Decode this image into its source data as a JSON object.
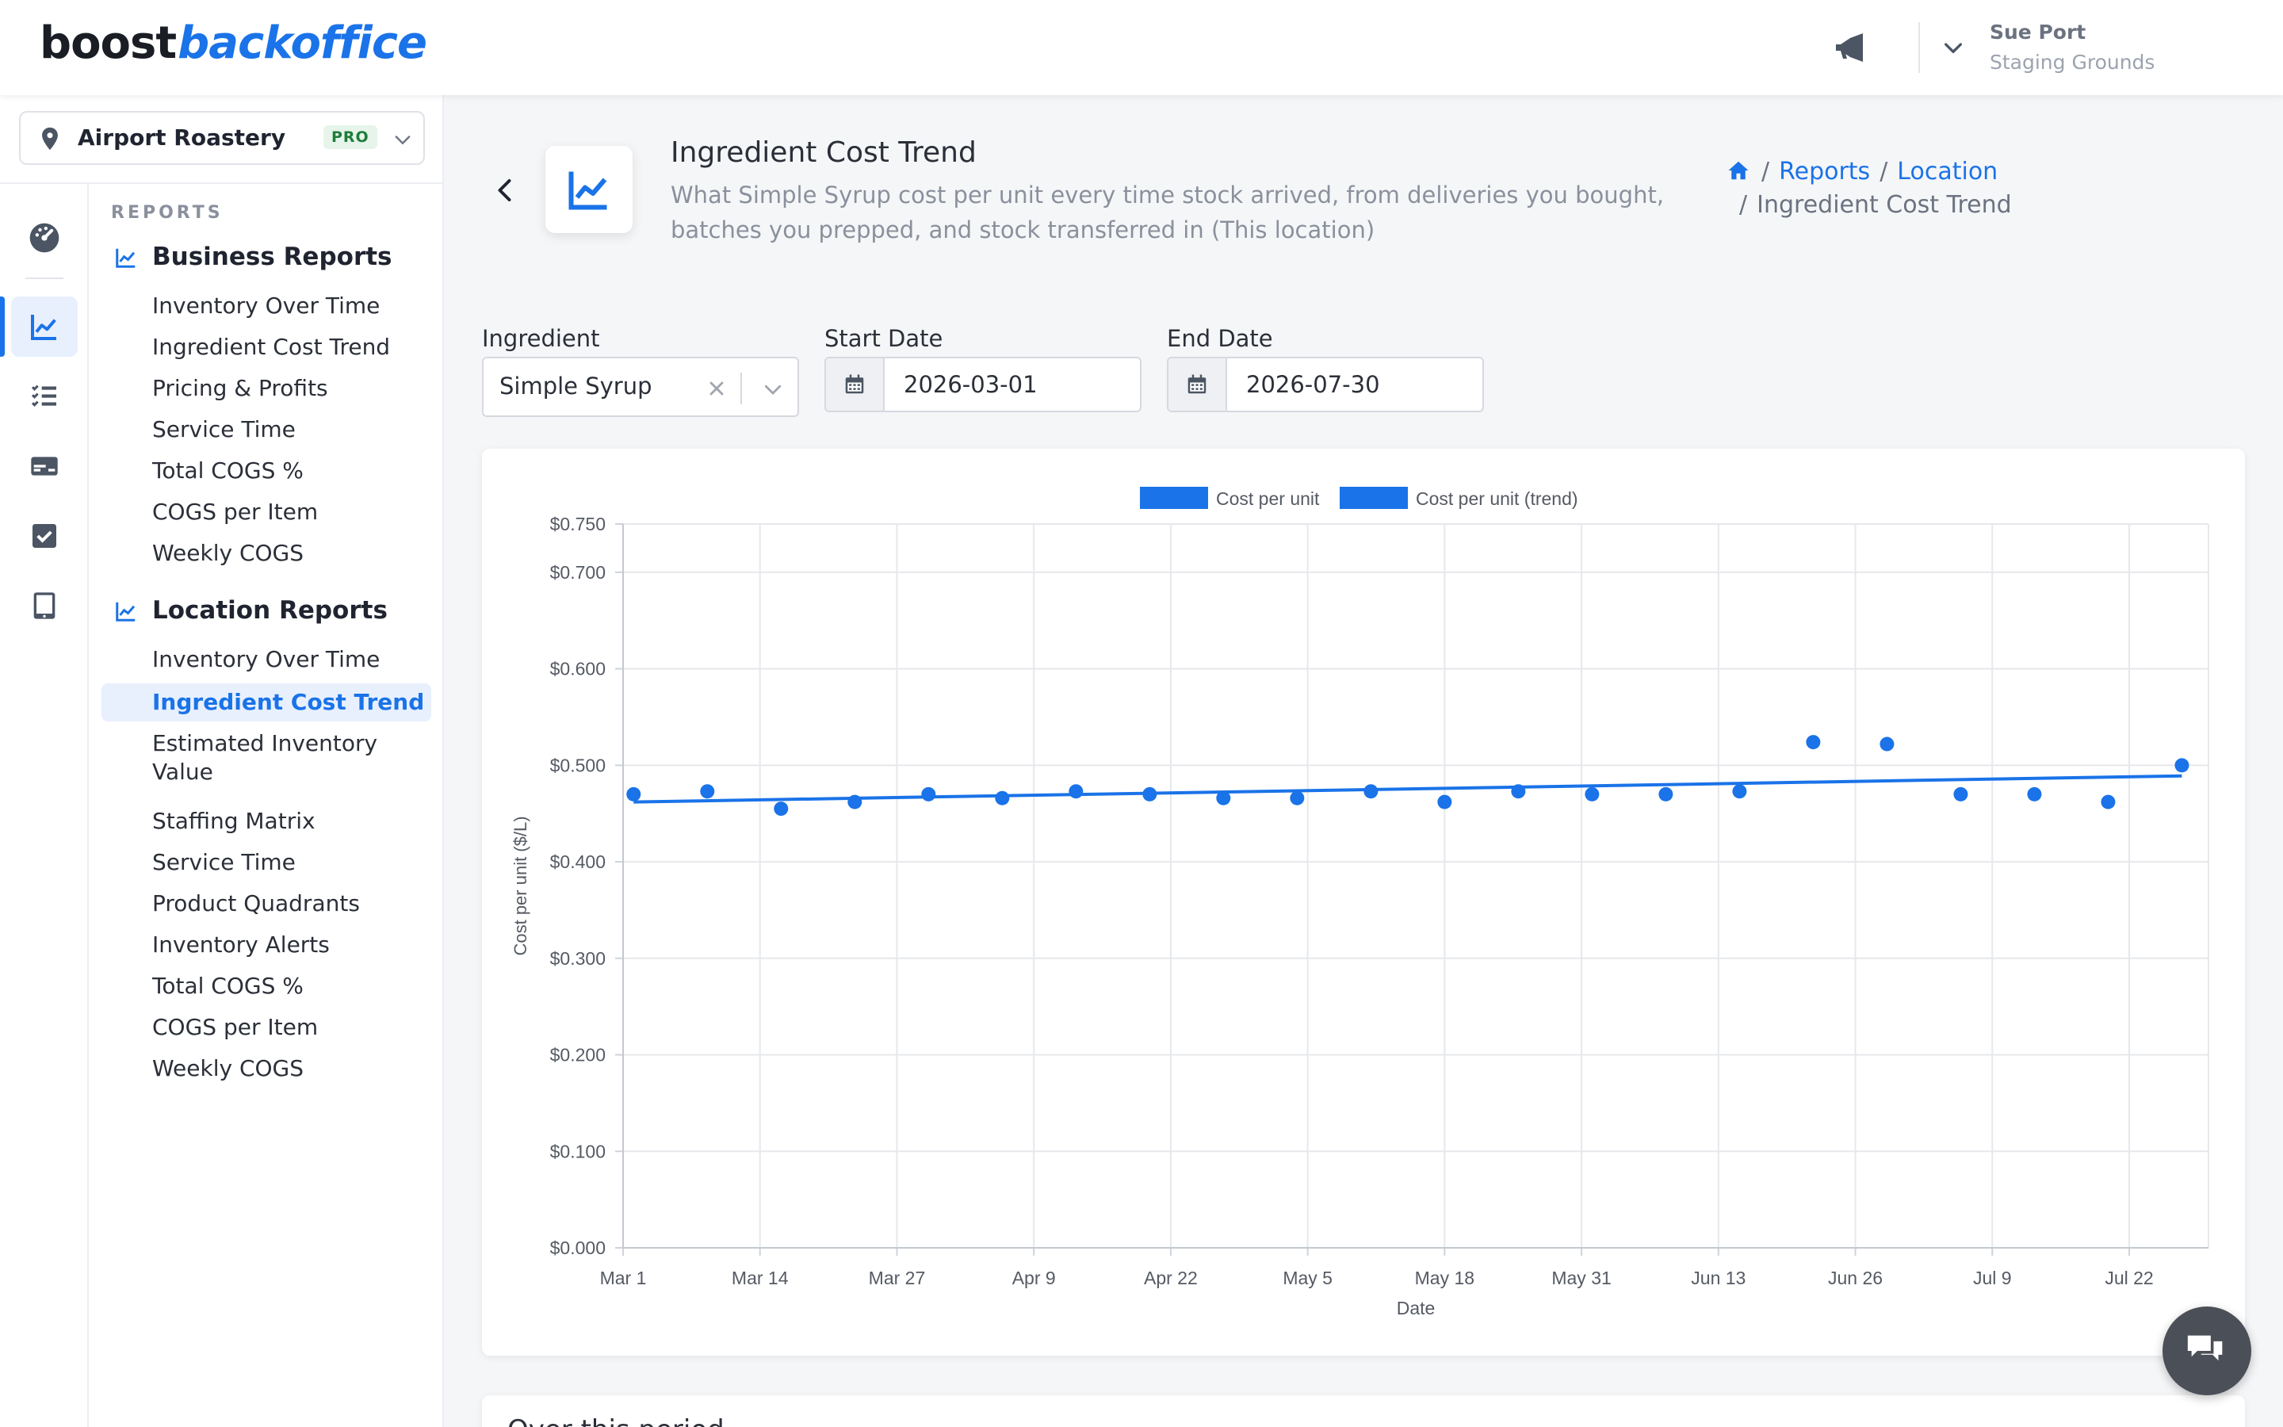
{
  "brand": {
    "logo_part1": "boost",
    "logo_part2": "backoffice"
  },
  "user": {
    "name": "Sue Port",
    "org": "Staging Grounds"
  },
  "location_selector": {
    "name": "Airport Roastery",
    "badge": "PRO"
  },
  "sidebar": {
    "heading": "REPORTS",
    "groups": [
      {
        "title": "Business Reports",
        "items": [
          "Inventory Over Time",
          "Ingredient Cost Trend",
          "Pricing & Profits",
          "Service Time",
          "Total COGS %",
          "COGS per Item",
          "Weekly COGS"
        ]
      },
      {
        "title": "Location Reports",
        "items": [
          "Inventory Over Time",
          "Ingredient Cost Trend",
          "Estimated Inventory Value",
          "Staffing Matrix",
          "Service Time",
          "Product Quadrants",
          "Inventory Alerts",
          "Total COGS %",
          "COGS per Item",
          "Weekly COGS"
        ]
      }
    ],
    "active_item": "Ingredient Cost Trend"
  },
  "rail_icons": [
    "dashboard-icon",
    "reports-chart-icon",
    "checklist-icon",
    "register-icon",
    "checkbox-icon",
    "tablet-icon"
  ],
  "page": {
    "title": "Ingredient Cost Trend",
    "subtitle": "What Simple Syrup cost per unit every time stock arrived, from deliveries you bought, batches you prepped, and stock transferred in (This location)"
  },
  "breadcrumb": {
    "home": "home-icon",
    "reports": "Reports",
    "location": "Location",
    "current": "Ingredient Cost Trend"
  },
  "filters": {
    "ingredient_label": "Ingredient",
    "ingredient_value": "Simple Syrup",
    "start_label": "Start Date",
    "start_value": "2026-03-01",
    "end_label": "End Date",
    "end_value": "2026-07-30"
  },
  "next_section": {
    "title": "Over this period"
  },
  "colors": {
    "accent": "#1a73e8",
    "series": "#1a73e8"
  },
  "chart_data": {
    "type": "scatter",
    "xlabel": "Date",
    "ylabel": "Cost per unit ($/L)",
    "ylim": [
      0,
      0.75
    ],
    "y_ticks": [
      "$0.750",
      "$0.700",
      "$0.600",
      "$0.500",
      "$0.400",
      "$0.300",
      "$0.200",
      "$0.100",
      "$0.000"
    ],
    "x_ticks": [
      "Mar 1",
      "Mar 14",
      "Mar 27",
      "Apr 9",
      "Apr 22",
      "May 5",
      "May 18",
      "May 31",
      "Jun 13",
      "Jun 26",
      "Jul 9",
      "Jul 22"
    ],
    "x_range": [
      "2026-03-01",
      "2026-07-30"
    ],
    "legend": [
      "Cost per unit",
      "Cost per unit (trend)"
    ],
    "legend_position": "top",
    "grid": true,
    "series": [
      {
        "name": "Cost per unit",
        "points": [
          {
            "x": "2026-03-02",
            "y": 0.47
          },
          {
            "x": "2026-03-09",
            "y": 0.473
          },
          {
            "x": "2026-03-16",
            "y": 0.455
          },
          {
            "x": "2026-03-23",
            "y": 0.462
          },
          {
            "x": "2026-03-30",
            "y": 0.47
          },
          {
            "x": "2026-04-06",
            "y": 0.466
          },
          {
            "x": "2026-04-13",
            "y": 0.473
          },
          {
            "x": "2026-04-20",
            "y": 0.47
          },
          {
            "x": "2026-04-27",
            "y": 0.466
          },
          {
            "x": "2026-05-04",
            "y": 0.466
          },
          {
            "x": "2026-05-11",
            "y": 0.473
          },
          {
            "x": "2026-05-18",
            "y": 0.462
          },
          {
            "x": "2026-05-25",
            "y": 0.473
          },
          {
            "x": "2026-06-01",
            "y": 0.47
          },
          {
            "x": "2026-06-08",
            "y": 0.47
          },
          {
            "x": "2026-06-15",
            "y": 0.473
          },
          {
            "x": "2026-06-22",
            "y": 0.524
          },
          {
            "x": "2026-06-29",
            "y": 0.522
          },
          {
            "x": "2026-07-06",
            "y": 0.47
          },
          {
            "x": "2026-07-13",
            "y": 0.47
          },
          {
            "x": "2026-07-20",
            "y": 0.462
          },
          {
            "x": "2026-07-27",
            "y": 0.5
          }
        ]
      },
      {
        "name": "Cost per unit (trend)",
        "points": [
          {
            "x": "2026-03-02",
            "y": 0.462
          },
          {
            "x": "2026-07-27",
            "y": 0.489
          }
        ]
      }
    ]
  }
}
